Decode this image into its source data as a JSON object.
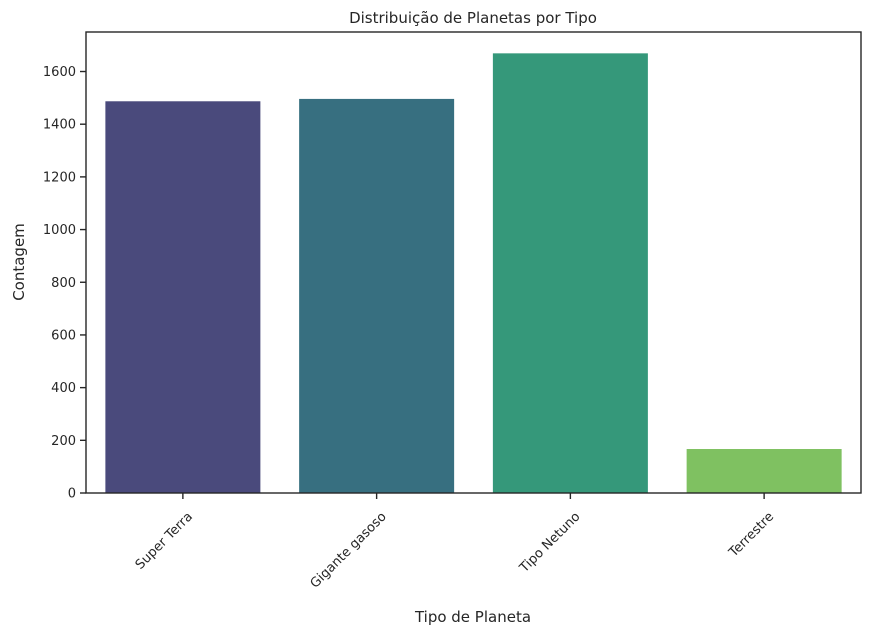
{
  "chart_data": {
    "type": "bar",
    "title": "Distribuição de Planetas por Tipo",
    "xlabel": "Tipo de Planeta",
    "ylabel": "Contagem",
    "categories": [
      "Super Terra",
      "Gigante gasoso",
      "Tipo Netuno",
      "Terrestre"
    ],
    "values": [
      1487,
      1496,
      1669,
      167
    ],
    "ylim": [
      0,
      1750
    ],
    "yticks": [
      0,
      200,
      400,
      600,
      800,
      1000,
      1200,
      1400,
      1600
    ],
    "yticklabels": [
      "0",
      "200",
      "400",
      "600",
      "800",
      "1000",
      "1200",
      "1400",
      "1600"
    ],
    "colors": [
      "#4a4a7c",
      "#376f80",
      "#35987a",
      "#7fc161"
    ],
    "grid": false,
    "xtick_rotation_deg": 45
  }
}
